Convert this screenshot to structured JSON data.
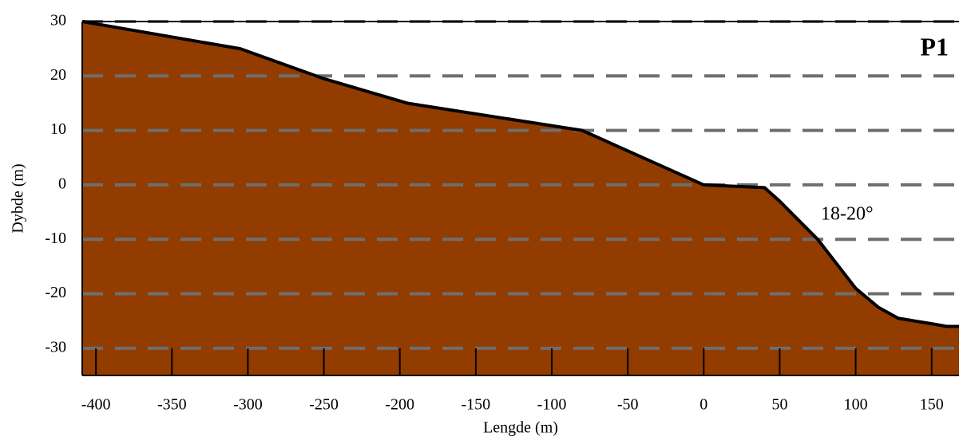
{
  "chart_data": {
    "type": "area",
    "x": [
      -409,
      -305,
      -250,
      -195,
      -80,
      -40,
      0,
      40,
      50,
      75,
      100,
      115,
      128,
      150,
      160,
      168
    ],
    "values": [
      30,
      25,
      19.5,
      15,
      10,
      5,
      0,
      -0.5,
      -3,
      -10,
      -19,
      -22.5,
      -24.5,
      -25.5,
      -26,
      -26
    ],
    "color": "#933c00",
    "xlim": [
      -409,
      168
    ],
    "ylim": [
      -35,
      30
    ],
    "xticks": [
      -400,
      -350,
      -300,
      -250,
      -200,
      -150,
      -100,
      -50,
      0,
      50,
      100,
      150
    ],
    "yticks": [
      -30,
      -20,
      -10,
      0,
      10,
      20,
      30
    ],
    "grid": true,
    "xlabel": "Lengde (m)",
    "ylabel": "Dybde (m)",
    "annotations": [
      "P1",
      "18-20°"
    ]
  }
}
